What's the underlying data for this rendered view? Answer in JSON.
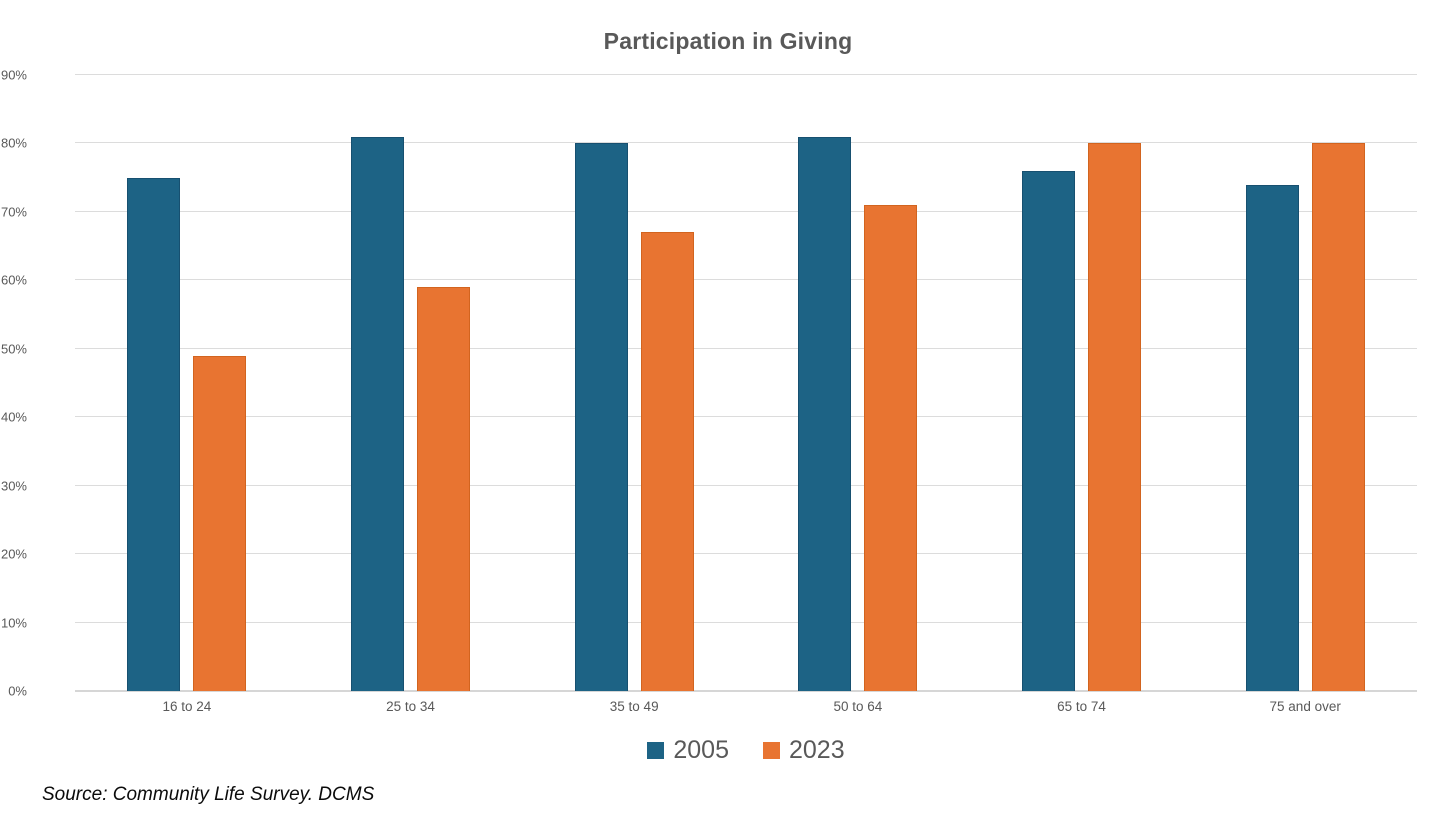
{
  "title": "Participation in Giving",
  "source_note": "Source: Community Life Survey. DCMS",
  "colors": {
    "series_2005": "#1d6385",
    "series_2023": "#e87431",
    "gridline": "#dcdcdc",
    "axis_text": "#595959",
    "title_text": "#595959"
  },
  "chart_data": {
    "type": "bar",
    "title": "Participation in Giving",
    "categories": [
      "16 to 24",
      "25 to 34",
      "35 to 49",
      "50 to 64",
      "65 to 74",
      "75 and over"
    ],
    "series": [
      {
        "name": "2005",
        "color": "#1d6385",
        "values": [
          75,
          81,
          80,
          81,
          76,
          74
        ]
      },
      {
        "name": "2023",
        "color": "#e87431",
        "values": [
          49,
          59,
          67,
          71,
          80,
          80
        ]
      }
    ],
    "xlabel": "",
    "ylabel": "",
    "ylim": [
      0,
      90
    ],
    "ytick_step": 10,
    "ytick_labels": [
      "0%",
      "10%",
      "20%",
      "30%",
      "40%",
      "50%",
      "60%",
      "70%",
      "80%",
      "90%"
    ],
    "grid": true,
    "legend_position": "bottom",
    "value_suffix": "%"
  }
}
